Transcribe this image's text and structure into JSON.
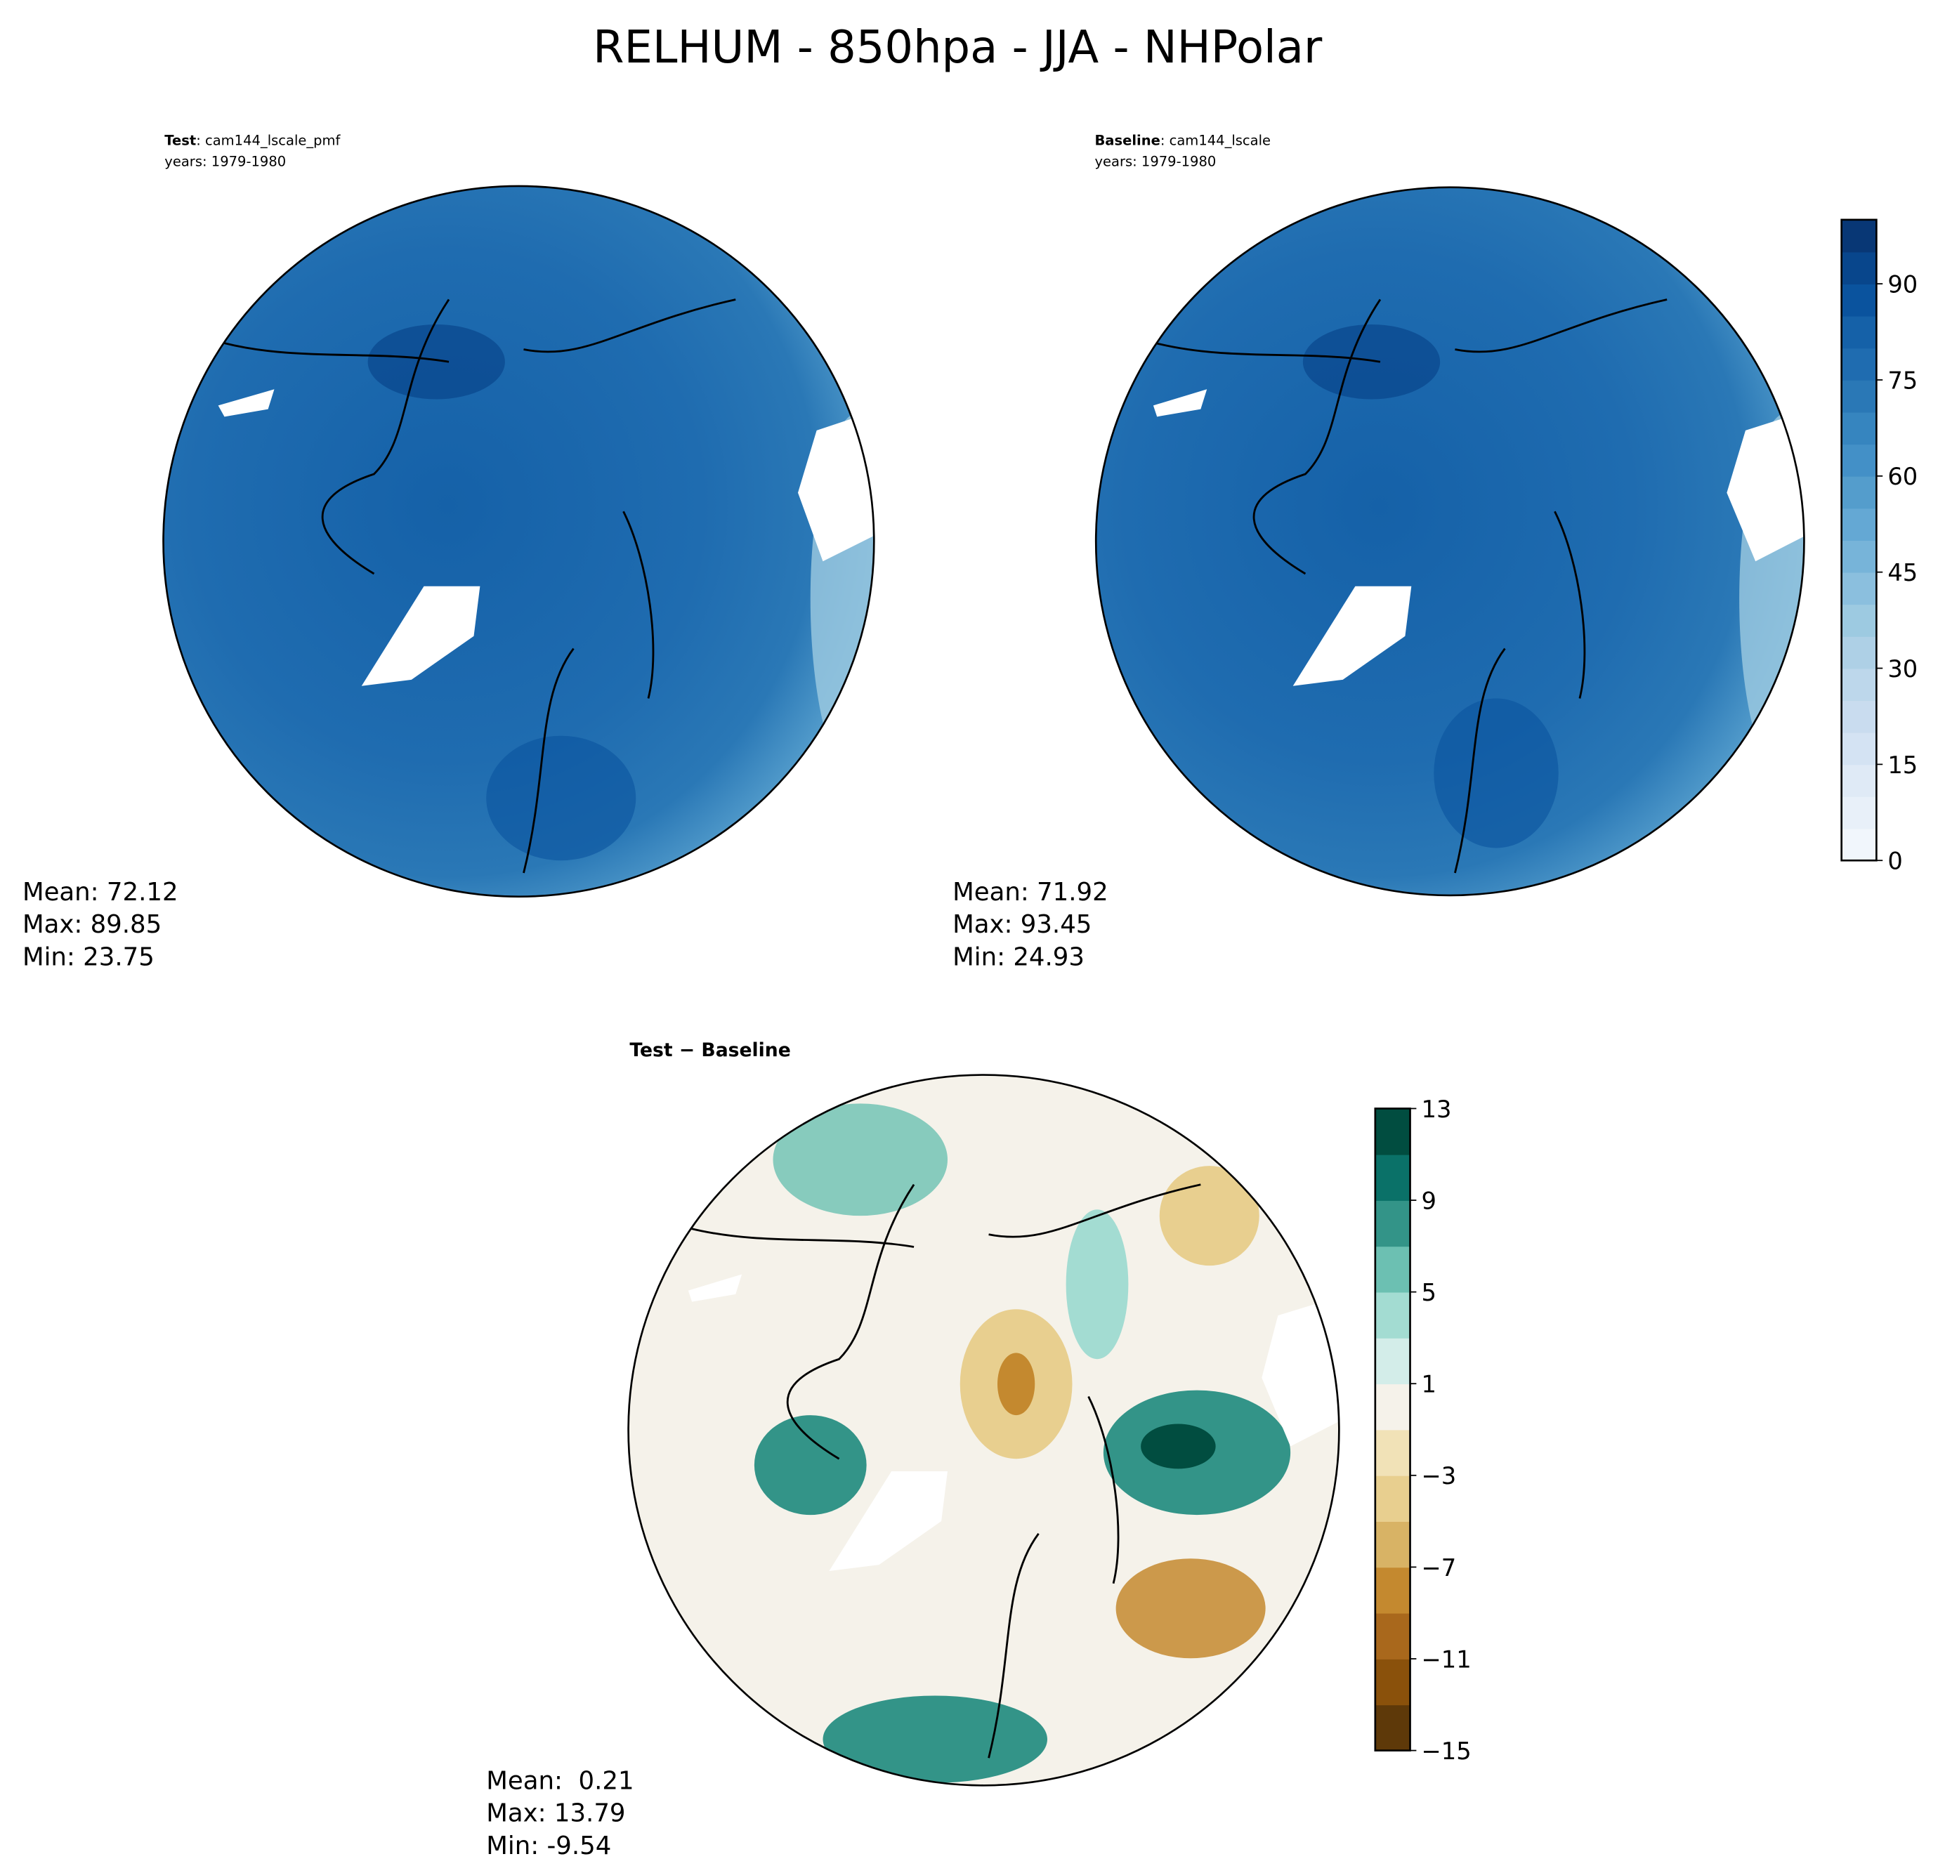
{
  "title": "RELHUM - 850hpa - JJA - NHPolar",
  "chart_data": [
    {
      "type": "heatmap",
      "projection": "north polar stereographic",
      "label_bold": "Test",
      "label_rest": ": cam144_lscale_pmf",
      "years": "years: 1979-1980",
      "stats": {
        "mean": "Mean: 72.12",
        "max": "Max: 89.85",
        "min": "Min: 23.75"
      },
      "colormap": "Blues",
      "range": [
        0,
        100
      ]
    },
    {
      "type": "heatmap",
      "projection": "north polar stereographic",
      "label_bold": "Baseline",
      "label_rest": ": cam144_lscale",
      "years": "years: 1979-1980",
      "stats": {
        "mean": "Mean: 71.92",
        "max": "Max: 93.45",
        "min": "Min: 24.93"
      },
      "colormap": "Blues",
      "range": [
        0,
        100
      ]
    },
    {
      "type": "heatmap",
      "projection": "north polar stereographic",
      "label": "Test − Baseline",
      "stats": {
        "mean": "Mean:  0.21",
        "max": "Max: 13.79",
        "min": "Min: -9.54"
      },
      "colormap": "BrBG",
      "range": [
        -15,
        13
      ]
    }
  ],
  "colorbar_top": {
    "levels": [
      0,
      5,
      10,
      15,
      20,
      25,
      30,
      35,
      40,
      45,
      50,
      55,
      60,
      65,
      70,
      75,
      80,
      85,
      90,
      95,
      100
    ],
    "tick_labels": [
      "0",
      "15",
      "30",
      "45",
      "60",
      "75",
      "90"
    ],
    "colors": [
      "#f1f6fc",
      "#e8f0f9",
      "#dfeaf6",
      "#d4e3f3",
      "#c9dcef",
      "#bdd7eb",
      "#aed0e6",
      "#9dcae1",
      "#8bbfde",
      "#77b4d9",
      "#64a8d4",
      "#549dcc",
      "#4390c7",
      "#3685bf",
      "#2a78b6",
      "#1f6cb0",
      "#1561a8",
      "#0a539e",
      "#08468c",
      "#083775"
    ]
  },
  "colorbar_diff": {
    "levels": [
      -15,
      -13,
      -11,
      -9,
      -7,
      -5,
      -3,
      -1,
      1,
      3,
      5,
      7,
      9,
      11,
      13
    ],
    "tick_labels": [
      "−15",
      "−11",
      "−7",
      "−3",
      "1",
      "5",
      "9",
      "13"
    ],
    "colors": [
      "#5e3909",
      "#8a510b",
      "#a9681c",
      "#c4892f",
      "#d8b365",
      "#e8cf8f",
      "#f1e2b7",
      "#f5f2ea",
      "#d3ede9",
      "#a3dcd2",
      "#6cc0b2",
      "#339488",
      "#0a7168",
      "#014d40"
    ]
  }
}
